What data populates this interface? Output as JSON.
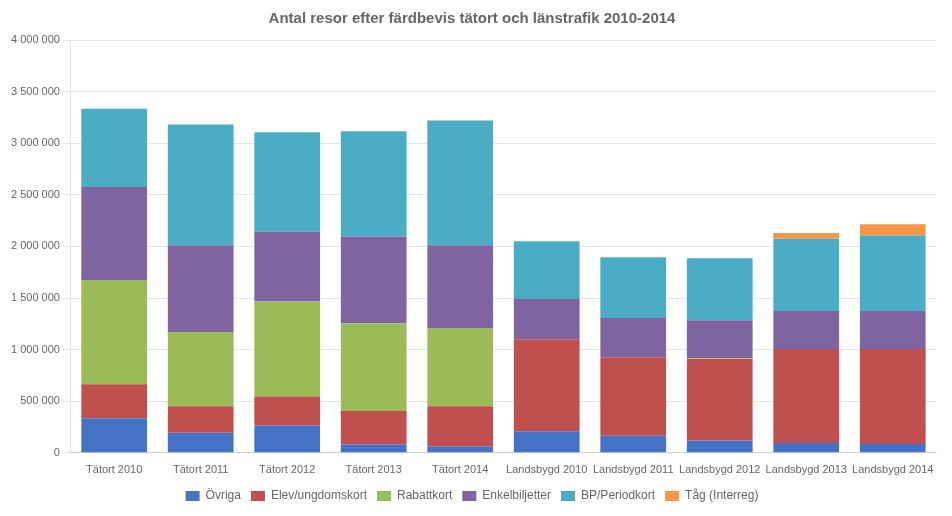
{
  "chart_data": {
    "type": "bar",
    "stacked": true,
    "title": "Antal resor efter färdbevis tätort och länstrafik 2010-2014",
    "categories": [
      "Tätort 2010",
      "Tätort 2011",
      "Tätort 2012",
      "Tätort 2013",
      "Tätort 2014",
      "Landsbygd 2010",
      "Landsbygd 2011",
      "Landsbygd 2012",
      "Landsbygd 2013",
      "Landsbygd 2014"
    ],
    "series": [
      {
        "name": "Övriga",
        "color": "#4472C4",
        "values": [
          335000,
          195000,
          265000,
          80000,
          60000,
          210000,
          165000,
          120000,
          95000,
          85000
        ]
      },
      {
        "name": "Elev/ungdomskort",
        "color": "#C0504D",
        "values": [
          330000,
          255000,
          280000,
          325000,
          390000,
          890000,
          760000,
          790000,
          910000,
          920000
        ]
      },
      {
        "name": "Rabattkort",
        "color": "#9BBB59",
        "values": [
          1010000,
          720000,
          920000,
          850000,
          760000,
          0,
          0,
          5000,
          0,
          0
        ]
      },
      {
        "name": "Enkelbiljetter",
        "color": "#8064A2",
        "values": [
          900000,
          840000,
          680000,
          840000,
          800000,
          390000,
          380000,
          370000,
          370000,
          370000
        ]
      },
      {
        "name": "BP/Periodkort",
        "color": "#4BACC6",
        "values": [
          760000,
          1170000,
          960000,
          1020000,
          1210000,
          560000,
          590000,
          600000,
          700000,
          730000
        ]
      },
      {
        "name": "Tåg (Interreg)",
        "color": "#F79646",
        "values": [
          0,
          0,
          0,
          0,
          0,
          0,
          0,
          0,
          55000,
          110000
        ]
      }
    ],
    "ylim": [
      0,
      4000000
    ],
    "yticks": [
      0,
      {
        "value": 500000,
        "label": "500 000"
      },
      {
        "value": 1000000,
        "label": "1 000 000"
      },
      {
        "value": 1500000,
        "label": "1 500 000"
      },
      {
        "value": 2000000,
        "label": "2 000 000"
      },
      {
        "value": 2500000,
        "label": "2 500 000"
      },
      {
        "value": 3000000,
        "label": "3 000 000"
      },
      {
        "value": 3500000,
        "label": "3 500 000"
      },
      {
        "value": 4000000,
        "label": "4 000 000"
      }
    ],
    "grid": true,
    "legend": "bottom"
  }
}
